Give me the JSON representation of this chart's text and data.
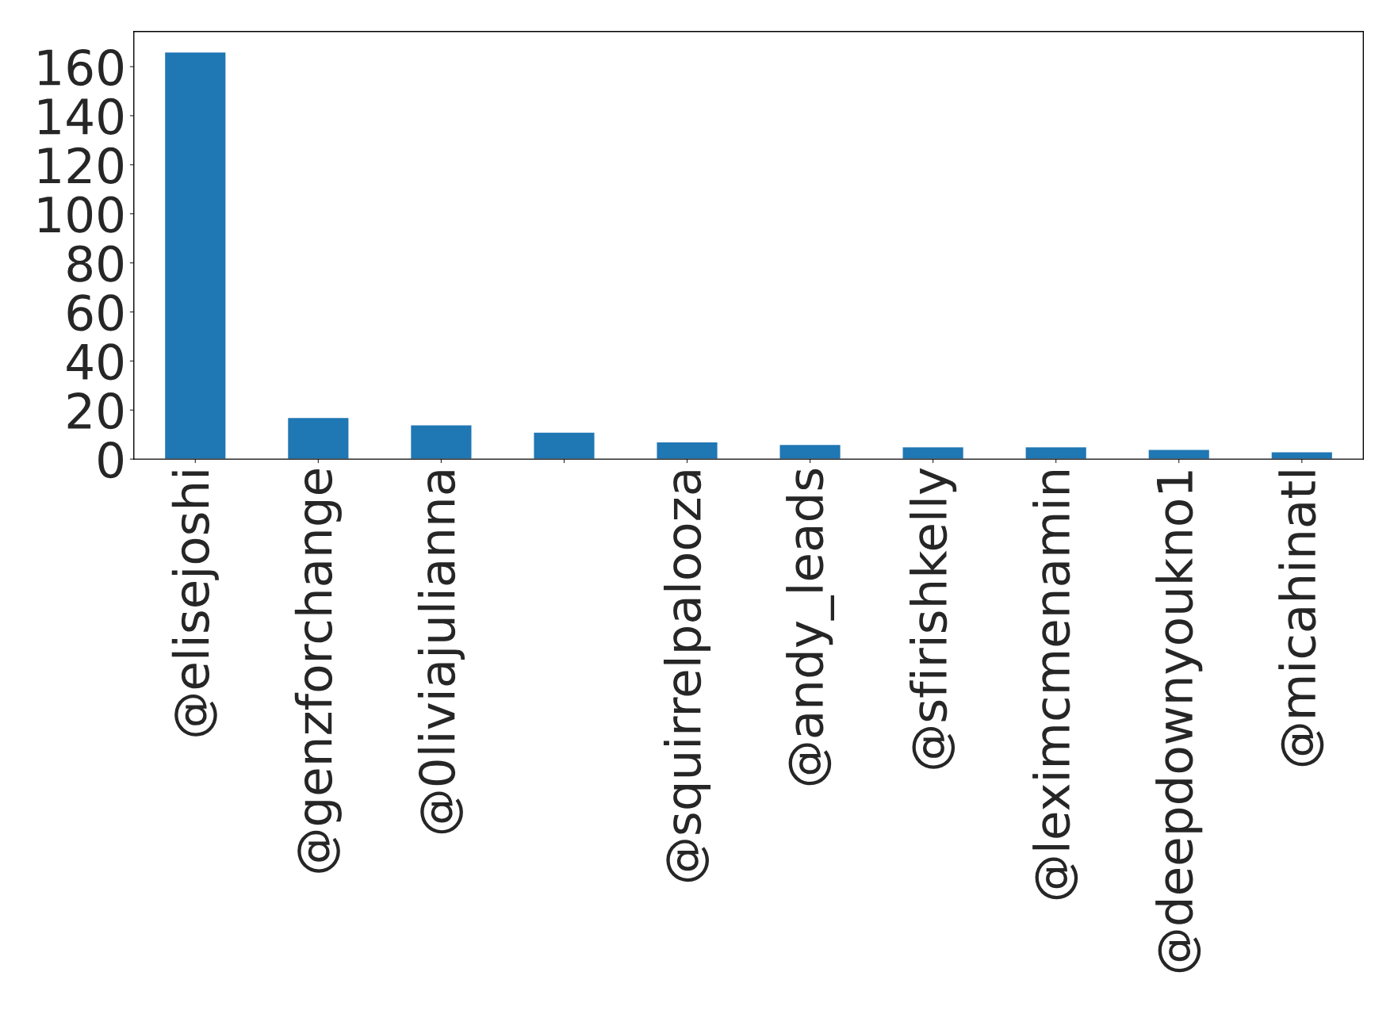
{
  "chart_data": {
    "type": "bar",
    "categories": [
      "@elisejoshi",
      "@genzforchange",
      "@0liviajulianna",
      null,
      "@squirrelpalooza",
      "@andy_leads",
      "@sfirishkelly",
      "@leximcmenamin",
      "@deepdownyoukno1",
      "@micahinatl"
    ],
    "values": [
      166,
      17,
      14,
      11,
      7,
      6,
      5,
      5,
      4,
      3
    ],
    "color": "#1f77b4",
    "ylim": [
      0,
      174.3
    ],
    "yticks": [
      0,
      20,
      40,
      60,
      80,
      100,
      120,
      140,
      160
    ],
    "grid": false
  }
}
